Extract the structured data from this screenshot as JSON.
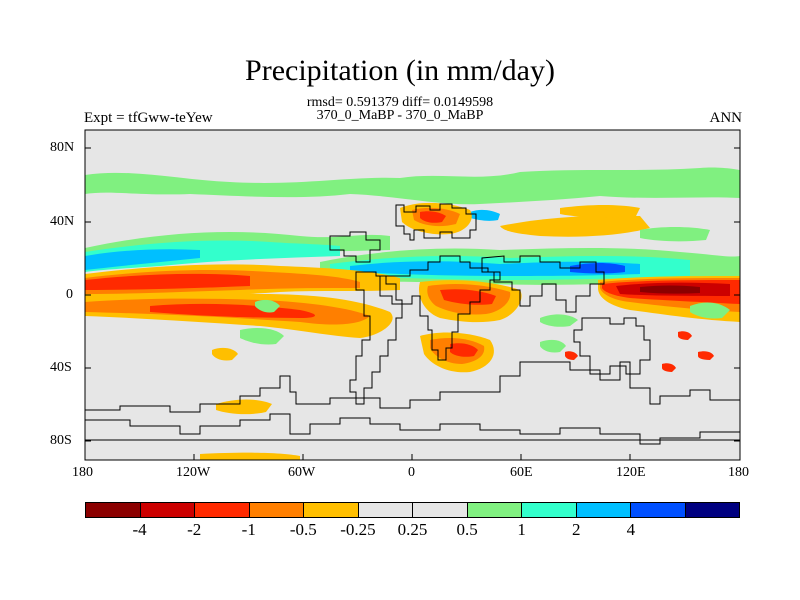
{
  "title": "Precipitation (in mm/day)",
  "stats_line": "rmsd= 0.591379 diff= 0.0149598",
  "experiment_line": "370_0_MaBP - 370_0_MaBP",
  "left_label": "Expt = tfGww-teYew",
  "right_label": "ANN",
  "x_ticks": [
    "180",
    "120W",
    "60W",
    "0",
    "60E",
    "120E",
    "180"
  ],
  "y_ticks": [
    "80N",
    "40N",
    "0",
    "40S",
    "80S"
  ],
  "colorbar": {
    "colors": [
      "#8b0000",
      "#cc0000",
      "#ff2a00",
      "#ff7f00",
      "#ffbf00",
      "#e6e6e6",
      "#e6e6e6",
      "#80f080",
      "#33ffcc",
      "#00bfff",
      "#0050ff",
      "#000080"
    ],
    "labels": [
      "-4",
      "-2",
      "-1",
      "-0.5",
      "-0.25",
      "0.25",
      "0.5",
      "1",
      "2",
      "4"
    ]
  },
  "colors": {
    "background": "#e6e6e6",
    "green": "#80f080",
    "cyan": "#33ffcc",
    "lightblue": "#00bfff",
    "blue": "#0050ff",
    "yellow": "#ffbf00",
    "orange": "#ff7f00",
    "red": "#ff2a00",
    "darkred": "#cc0000"
  }
}
